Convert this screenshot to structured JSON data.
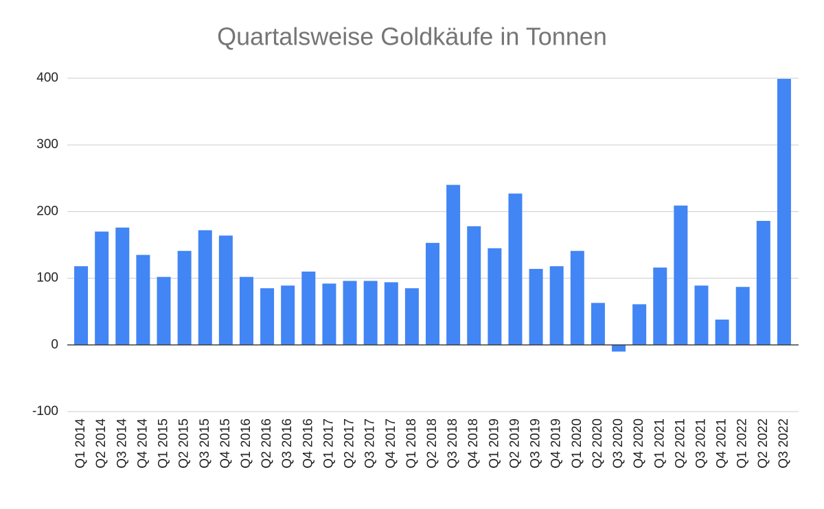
{
  "chart_data": {
    "type": "bar",
    "title": "Quartalsweise Goldkäufe in Tonnen",
    "categories": [
      "Q1 2014",
      "Q2 2014",
      "Q3 2014",
      "Q4 2014",
      "Q1 2015",
      "Q2 2015",
      "Q3 2015",
      "Q4 2015",
      "Q1 2016",
      "Q2 2016",
      "Q3 2016",
      "Q4 2016",
      "Q1 2017",
      "Q2 2017",
      "Q3 2017",
      "Q4 2017",
      "Q1 2018",
      "Q2 2018",
      "Q3 2018",
      "Q4 2018",
      "Q1 2019",
      "Q2 2019",
      "Q3 2019",
      "Q4 2019",
      "Q1 2020",
      "Q2 2020",
      "Q3 2020",
      "Q4 2020",
      "Q1 2021",
      "Q2 2021",
      "Q3 2021",
      "Q4 2021",
      "Q1 2022",
      "Q2 2022",
      "Q3 2022"
    ],
    "values": [
      118,
      170,
      176,
      135,
      102,
      141,
      172,
      164,
      102,
      85,
      89,
      110,
      92,
      96,
      96,
      94,
      85,
      153,
      240,
      178,
      145,
      227,
      114,
      118,
      141,
      63,
      -10,
      61,
      116,
      209,
      89,
      38,
      87,
      186,
      399
    ],
    "color": "#4285f4",
    "ylim": [
      -100,
      400
    ],
    "yticks": [
      -100,
      0,
      100,
      200,
      300,
      400
    ],
    "grid": true
  }
}
